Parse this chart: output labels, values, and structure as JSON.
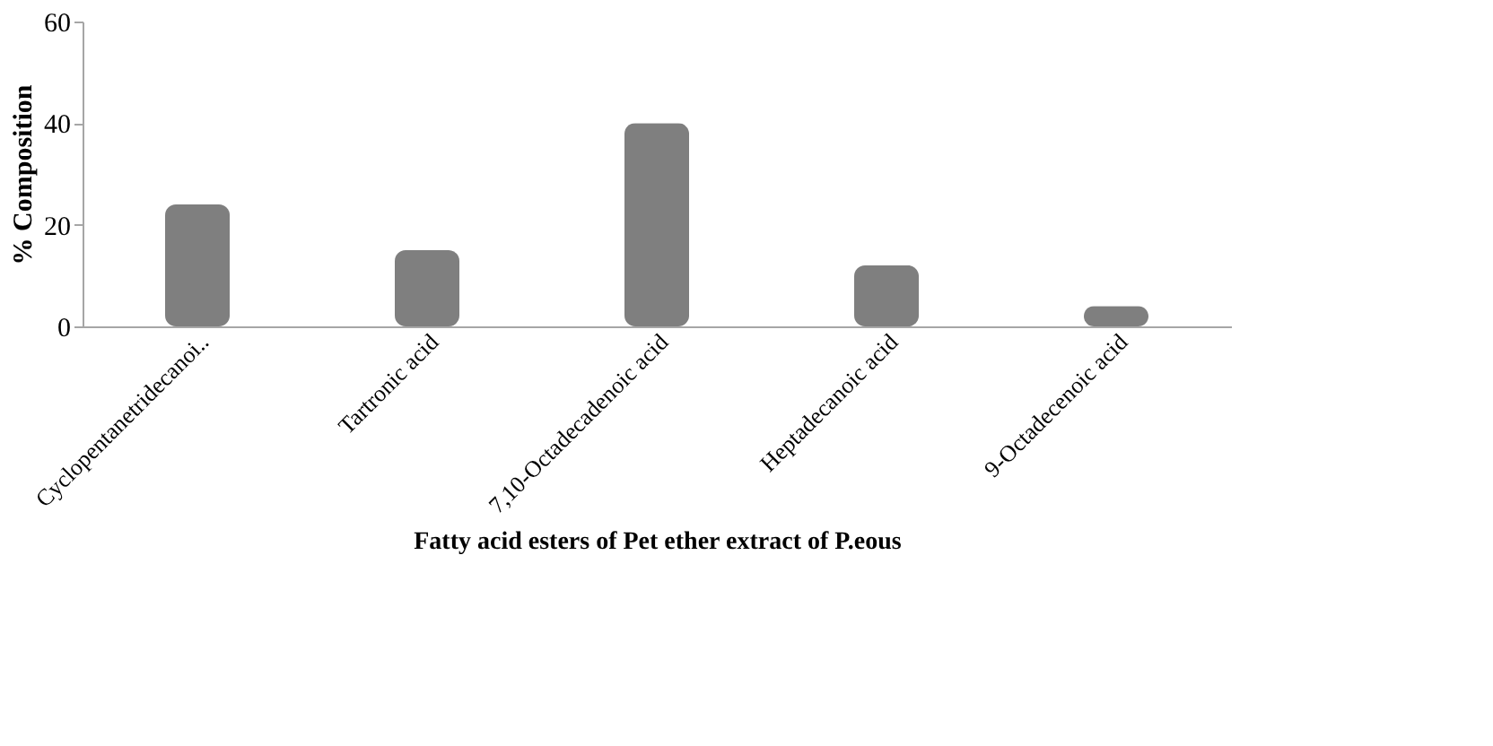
{
  "chart_data": {
    "type": "bar",
    "categories": [
      "Cyclopentanetridecanoi..",
      "Tartronic acid",
      "7,10-Octadecadenoic acid",
      "Heptadecanoic acid",
      "9-Octadecenoic acid"
    ],
    "values": [
      24,
      15,
      40,
      12,
      4
    ],
    "color": "#7f7f7f",
    "ylim": [
      0,
      60
    ],
    "yticks": [
      0,
      20,
      40,
      60
    ],
    "grid": false,
    "xlabel": "Fatty acid esters of Pet ether extract of P.eous",
    "ylabel": "% Composition"
  }
}
